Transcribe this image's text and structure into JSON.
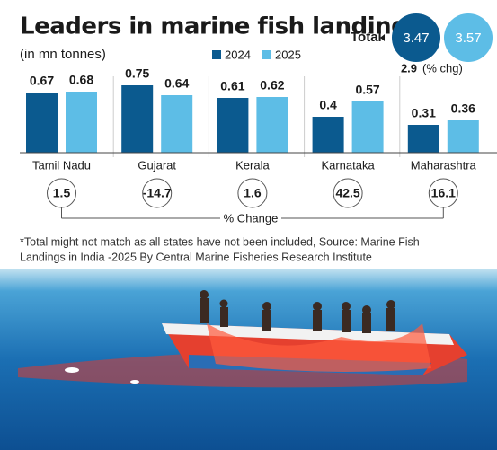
{
  "chart_data": {
    "type": "bar",
    "title": "Leaders in marine fish landings",
    "subtitle": "(in mn tonnes)",
    "categories": [
      "Tamil Nadu",
      "Gujarat",
      "Kerala",
      "Karnataka",
      "Maharashtra"
    ],
    "series": [
      {
        "name": "2024",
        "color": "#0b5a8f",
        "values": [
          0.67,
          0.75,
          0.61,
          0.4,
          0.31
        ]
      },
      {
        "name": "2025",
        "color": "#5dbde6",
        "values": [
          0.68,
          0.64,
          0.62,
          0.57,
          0.36
        ]
      }
    ],
    "change_label": "% Change",
    "change_values": [
      1.5,
      -14.7,
      1.6,
      42.5,
      16.1
    ],
    "total_label": "Total",
    "totals": [
      3.47,
      3.57
    ],
    "total_change": 2.9,
    "total_change_unit": "(% chg)",
    "footnote": [
      "*Total might not match as all states have not been included, Source: Marine Fish",
      "Landings in India -2025 By Central Marine Fisheries Research Institute"
    ]
  }
}
